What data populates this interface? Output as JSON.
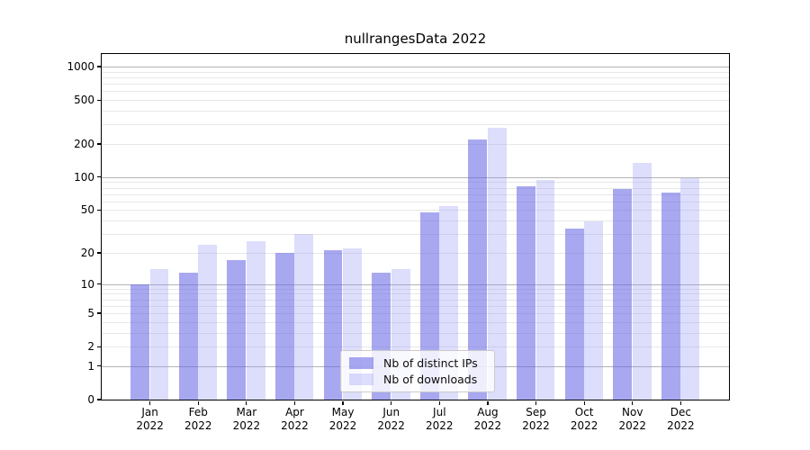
{
  "chart_data": {
    "type": "bar",
    "title": "nullrangesData 2022",
    "categories": [
      "Jan 2022",
      "Feb 2022",
      "Mar 2022",
      "Apr 2022",
      "May 2022",
      "Jun 2022",
      "Jul 2022",
      "Aug 2022",
      "Sep 2022",
      "Oct 2022",
      "Nov 2022",
      "Dec 2022"
    ],
    "series": [
      {
        "name": "Nb of distinct IPs",
        "values": [
          10,
          13,
          17,
          20,
          21,
          13,
          48,
          220,
          82,
          34,
          78,
          72
        ],
        "fill": "#6464e4",
        "fill_opacity": 0.56,
        "rendered_color": "#a8a8f0"
      },
      {
        "name": "Nb of downloads",
        "values": [
          14,
          24,
          26,
          30,
          22,
          14,
          54,
          280,
          95,
          39,
          135,
          97
        ],
        "fill": "#9696f5",
        "fill_opacity": 0.32,
        "rendered_color": "#dedefa"
      }
    ],
    "yscale": "log1p",
    "y_ticks": [
      0,
      1,
      2,
      5,
      10,
      20,
      50,
      100,
      200,
      500,
      1000
    ],
    "ylim": [
      0,
      1300
    ],
    "xlim": [
      -1,
      12
    ],
    "bar_width": 0.4,
    "grid": {
      "major": [
        1,
        10,
        100,
        1000
      ],
      "minor": [
        2,
        3,
        4,
        5,
        6,
        7,
        8,
        9,
        20,
        30,
        40,
        50,
        60,
        70,
        80,
        90,
        200,
        300,
        400,
        500,
        600,
        700,
        800,
        900
      ],
      "major_color": "#b3b3b3",
      "minor_color": "#e8e8e8"
    },
    "legend_position": "lower center"
  },
  "colors": {
    "background": "#ffffff",
    "axis": "#000000",
    "text": "#000000"
  }
}
